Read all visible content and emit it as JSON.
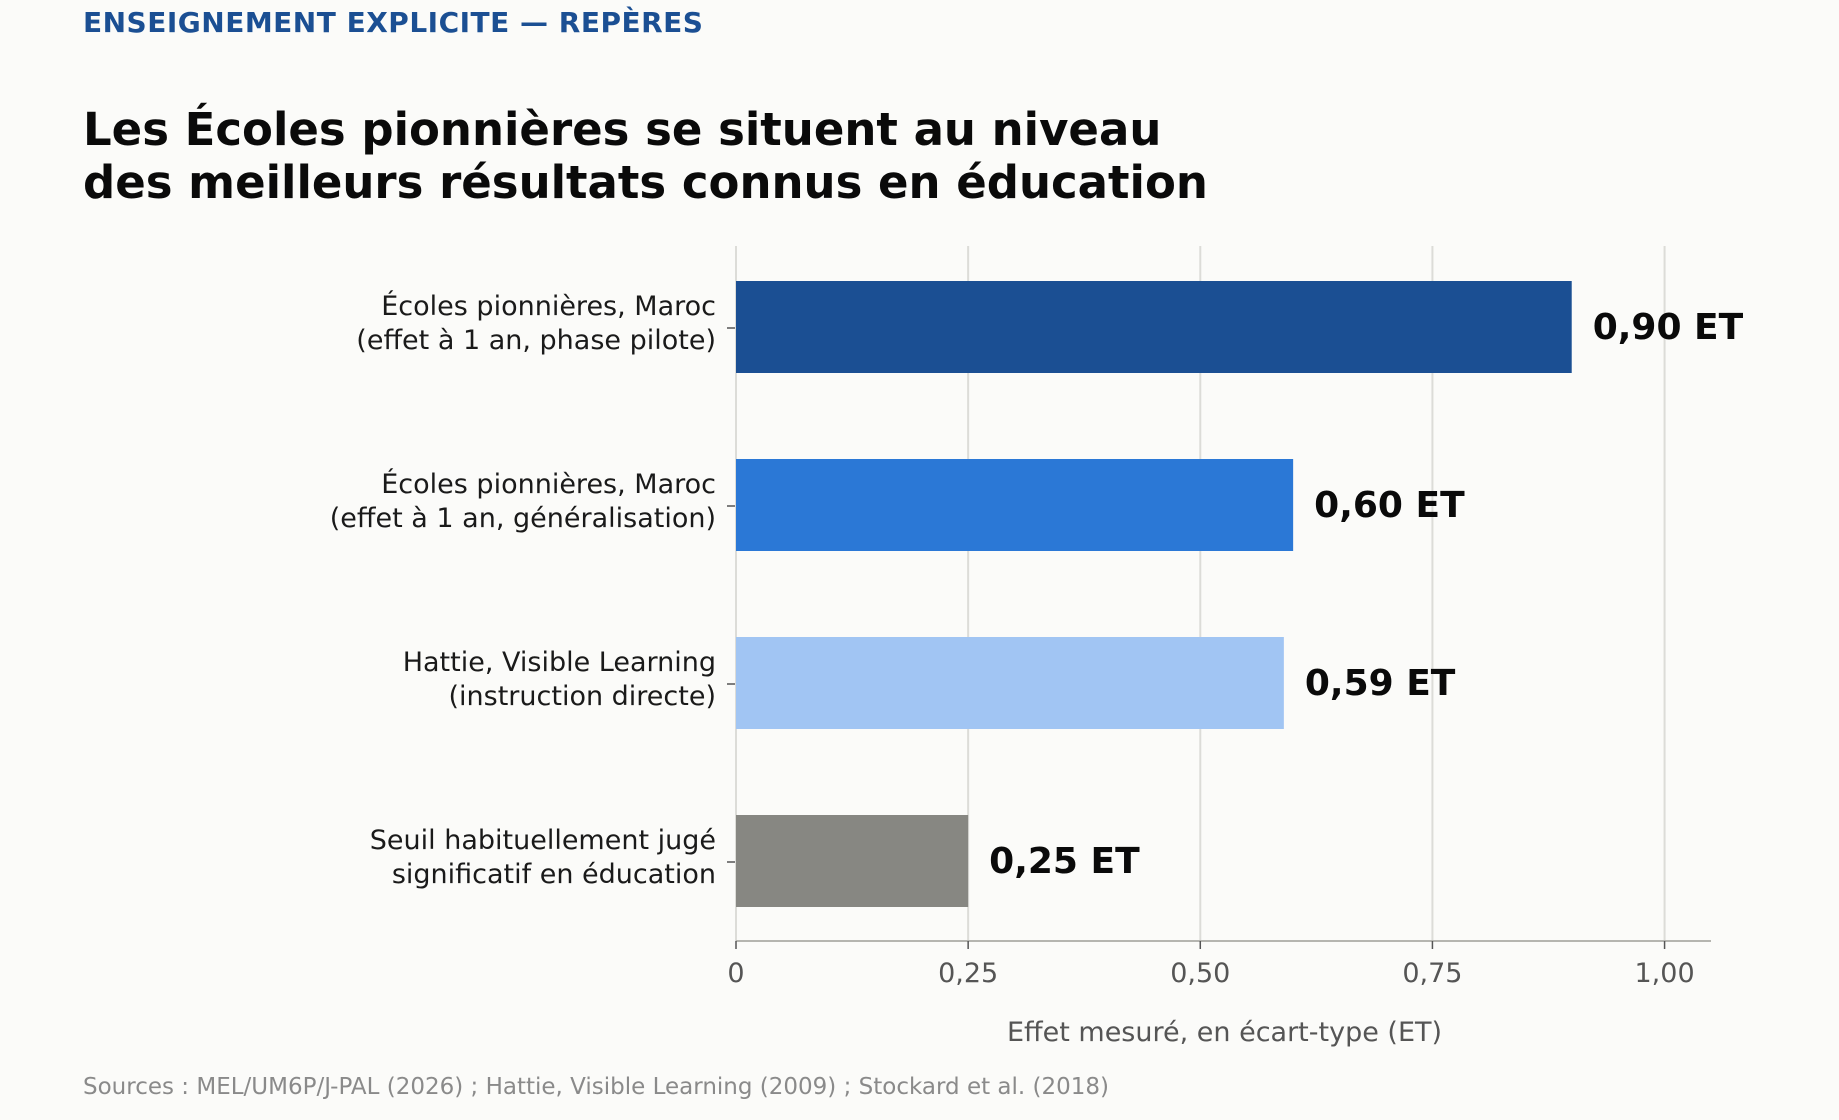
{
  "header": {
    "kicker": "ENSEIGNEMENT EXPLICITE — REPÈRES",
    "title_line1": "Les Écoles pionnières se situent au niveau",
    "title_line2": "des meilleurs résultats connus en éducation"
  },
  "footer": {
    "source": "Sources : MEL/UM6P/J-PAL (2026) ; Hattie, Visible Learning (2009) ; Stockard et al. (2018)"
  },
  "chart_data": {
    "type": "bar",
    "orientation": "horizontal",
    "categories": [
      [
        "Écoles pionnières, Maroc",
        "(effet à 1 an, phase pilote)"
      ],
      [
        "Écoles pionnières, Maroc",
        "(effet à 1 an, généralisation)"
      ],
      [
        "Hattie, Visible Learning",
        "(instruction directe)"
      ],
      [
        "Seuil habituellement jugé",
        "significatif en éducation"
      ]
    ],
    "values": [
      0.9,
      0.6,
      0.59,
      0.25
    ],
    "value_labels": [
      "0,90 ET",
      "0,60 ET",
      "0,59 ET",
      "0,25 ET"
    ],
    "colors": [
      "#1b4f93",
      "#2b78d6",
      "#a1c5f3",
      "#878782"
    ],
    "xlabel": "Effet mesuré, en écart-type (ET)",
    "xlim": [
      0,
      1.05
    ],
    "xticks": [
      0,
      0.25,
      0.5,
      0.75,
      1.0
    ],
    "xtick_labels": [
      "0",
      "0,25",
      "0,50",
      "0,75",
      "1,00"
    ],
    "grid": true
  }
}
